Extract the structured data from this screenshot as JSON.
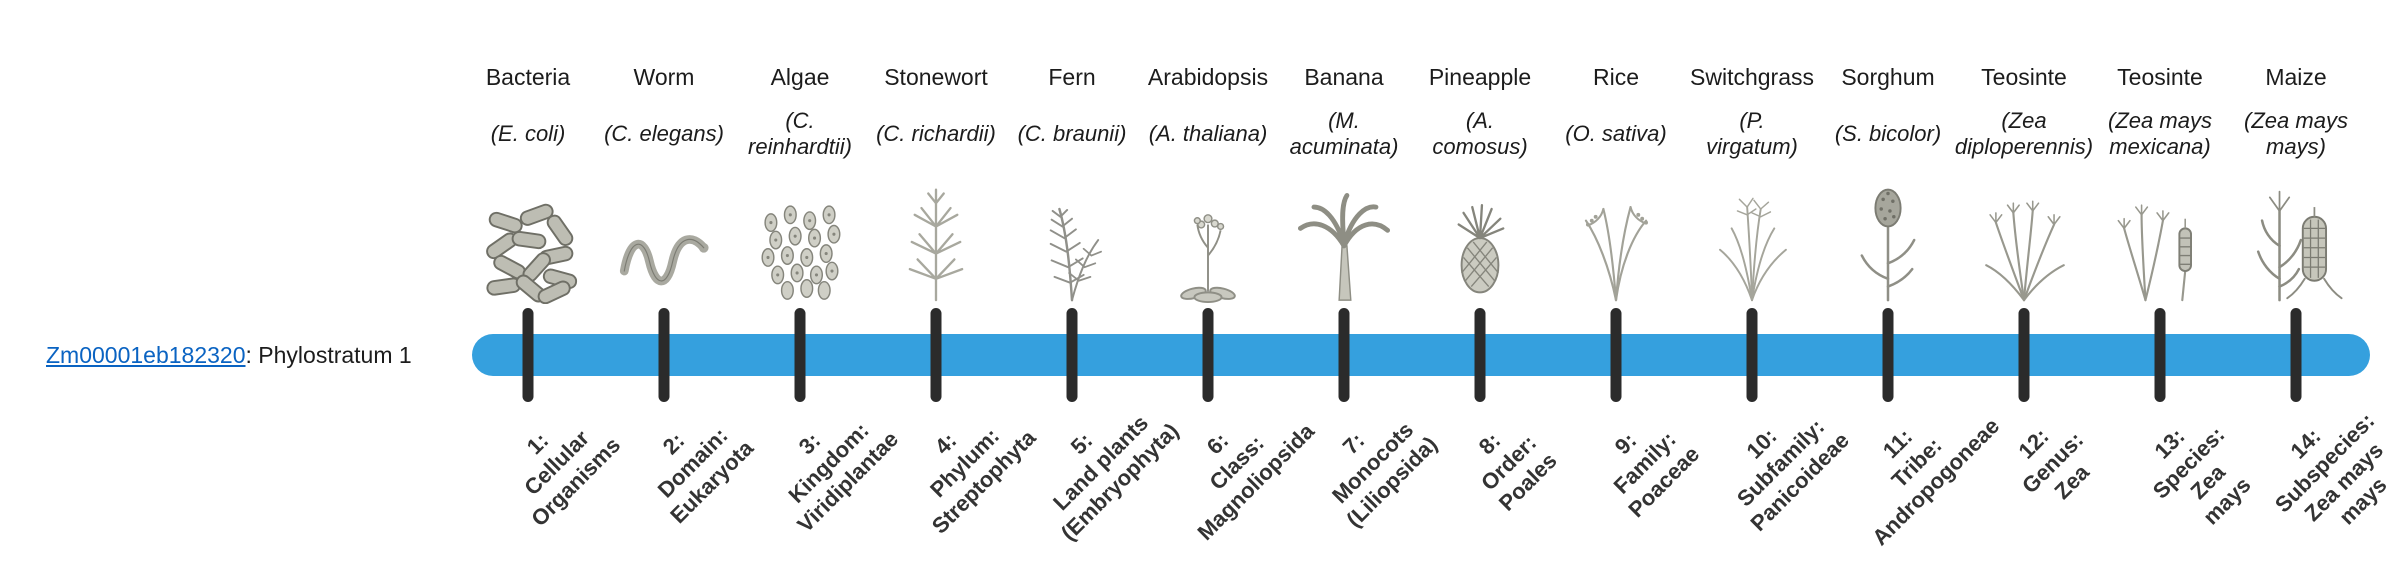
{
  "gene": {
    "id": "Zm00001eb182320",
    "suffix": ": Phylostratum 1",
    "link_color": "#0a63c2"
  },
  "timeline": {
    "bar_color": "#35a0de",
    "tick_color": "#2b2b2b"
  },
  "organisms": [
    {
      "common": "Bacteria",
      "scientific": "(E. coli)",
      "icon": "bacteria-icon",
      "stratum_label": "1:\nCellular\nOrganisms"
    },
    {
      "common": "Worm",
      "scientific": "(C. elegans)",
      "icon": "worm-icon",
      "stratum_label": "2:\nDomain:\nEukaryota"
    },
    {
      "common": "Algae",
      "scientific": "(C.\nreinhardtii)",
      "icon": "algae-icon",
      "stratum_label": "3:\nKingdom:\nViridiplantae"
    },
    {
      "common": "Stonewort",
      "scientific": "(C. richardii)",
      "icon": "stonewort-icon",
      "stratum_label": "4:\nPhylum:\nStreptophyta"
    },
    {
      "common": "Fern",
      "scientific": "(C. braunii)",
      "icon": "fern-icon",
      "stratum_label": "5:\nLand plants\n(Embryophyta)"
    },
    {
      "common": "Arabidopsis",
      "scientific": "(A. thaliana)",
      "icon": "arabidopsis-icon",
      "stratum_label": "6:\nClass:\nMagnoliopsida"
    },
    {
      "common": "Banana",
      "scientific": "(M.\nacuminata)",
      "icon": "banana-icon",
      "stratum_label": "7:\nMonocots\n(Liliopsida)"
    },
    {
      "common": "Pineapple",
      "scientific": "(A.\ncomosus)",
      "icon": "pineapple-icon",
      "stratum_label": "8:\nOrder:\nPoales"
    },
    {
      "common": "Rice",
      "scientific": "(O. sativa)",
      "icon": "rice-icon",
      "stratum_label": "9:\nFamily:\nPoaceae"
    },
    {
      "common": "Switchgrass",
      "scientific": "(P.\nvirgatum)",
      "icon": "switchgrass-icon",
      "stratum_label": "10:\nSubfamily:\nPanicoideae"
    },
    {
      "common": "Sorghum",
      "scientific": "(S. bicolor)",
      "icon": "sorghum-icon",
      "stratum_label": "11:\nTribe:\nAndropogoneae"
    },
    {
      "common": "Teosinte",
      "scientific": "(Zea\ndiploperennis)",
      "icon": "teosinte-diploperennis-icon",
      "stratum_label": "12:\nGenus:\nZea"
    },
    {
      "common": "Teosinte",
      "scientific": "(Zea mays\nmexicana)",
      "icon": "teosinte-mexicana-icon",
      "stratum_label": "13:\nSpecies:\nZea\nmays"
    },
    {
      "common": "Maize",
      "scientific": "(Zea mays\nmays)",
      "icon": "maize-icon",
      "stratum_label": "14:\nSubspecies:\nZea mays\nmays"
    }
  ]
}
